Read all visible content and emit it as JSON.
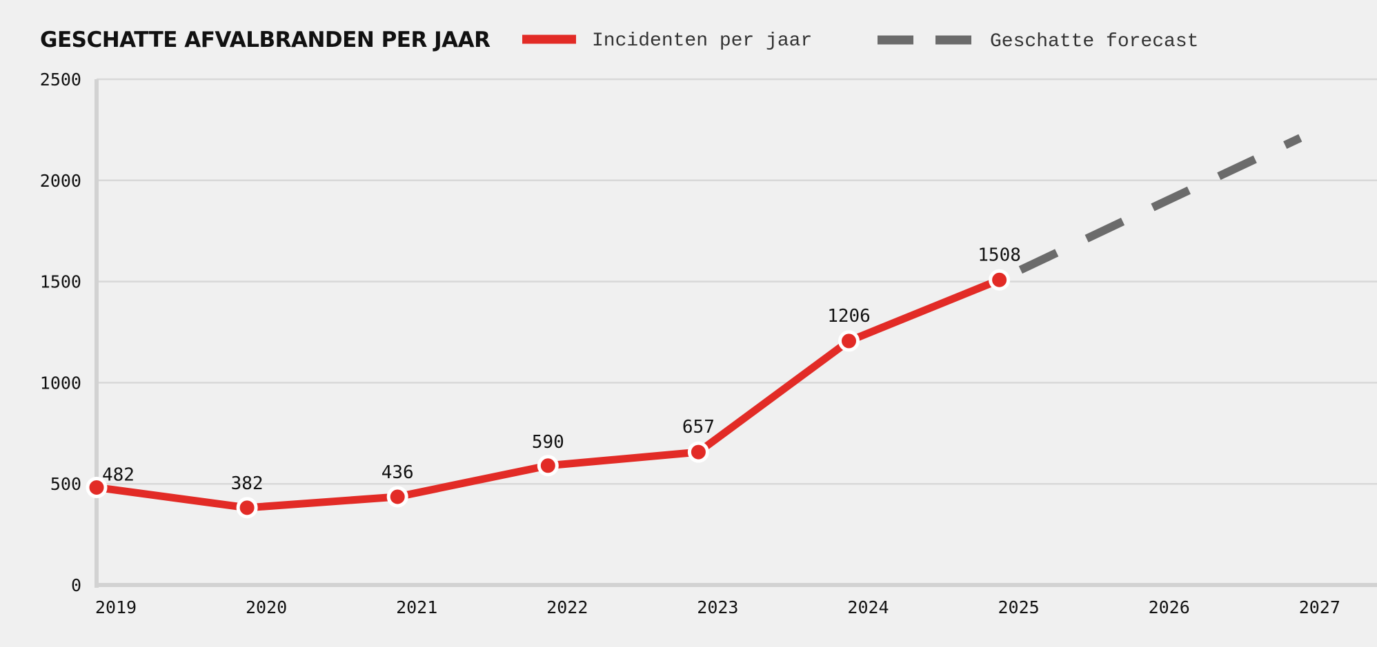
{
  "colors": {
    "background": "#f0f0f0",
    "actual": "#e22b26",
    "forecast": "#6b6b6b",
    "grid": "#d8d8d8",
    "axis": "#d2d2d2"
  },
  "chart_data": {
    "type": "line",
    "title": "GESCHATTE AFVALBRANDEN PER JAAR",
    "xlabel": "",
    "ylabel": "",
    "categories": [
      "2019",
      "2020",
      "2021",
      "2022",
      "2023",
      "2024",
      "2025",
      "2026",
      "2027"
    ],
    "yticks": [
      0,
      500,
      1000,
      1500,
      2000,
      2500
    ],
    "ylim": [
      0,
      2500
    ],
    "grid": true,
    "legend_position": "top",
    "series": [
      {
        "name": "Incidenten per jaar",
        "style": "solid",
        "color": "#e22b26",
        "x": [
          "2019",
          "2020",
          "2021",
          "2022",
          "2023",
          "2024",
          "2025"
        ],
        "values": [
          482,
          382,
          436,
          590,
          657,
          1206,
          1508
        ]
      },
      {
        "name": "Geschatte forecast",
        "style": "dashed",
        "color": "#6b6b6b",
        "x": [
          "2025",
          "2026",
          "2027"
        ],
        "values": [
          1508,
          1860,
          2210
        ]
      }
    ]
  }
}
